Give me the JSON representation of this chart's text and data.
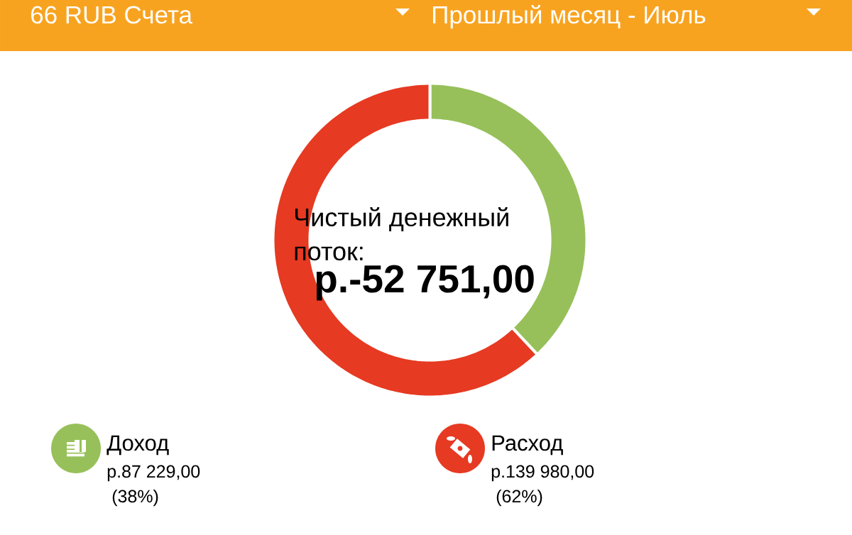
{
  "chart_data": {
    "type": "donut",
    "title": "Чистый денежный поток:",
    "subtitle": "р.-52 751,00",
    "categories": [
      "Доход",
      "Расход"
    ],
    "values": [
      38,
      62
    ],
    "colors": [
      "#97c05a",
      "#e63a22"
    ],
    "legend": "bottom",
    "annotations": [
      "66 RUB Счета",
      "Прошлый месяц - Июль",
      {
        "text": "р.87 229,00",
        "x": "Доход"
      },
      {
        "text": "р.139 980,00",
        "x": "Расход"
      },
      {
        "text": "(38%)",
        "x": "Доход"
      },
      {
        "text": "(62%)",
        "x": "Расход"
      }
    ]
  }
}
